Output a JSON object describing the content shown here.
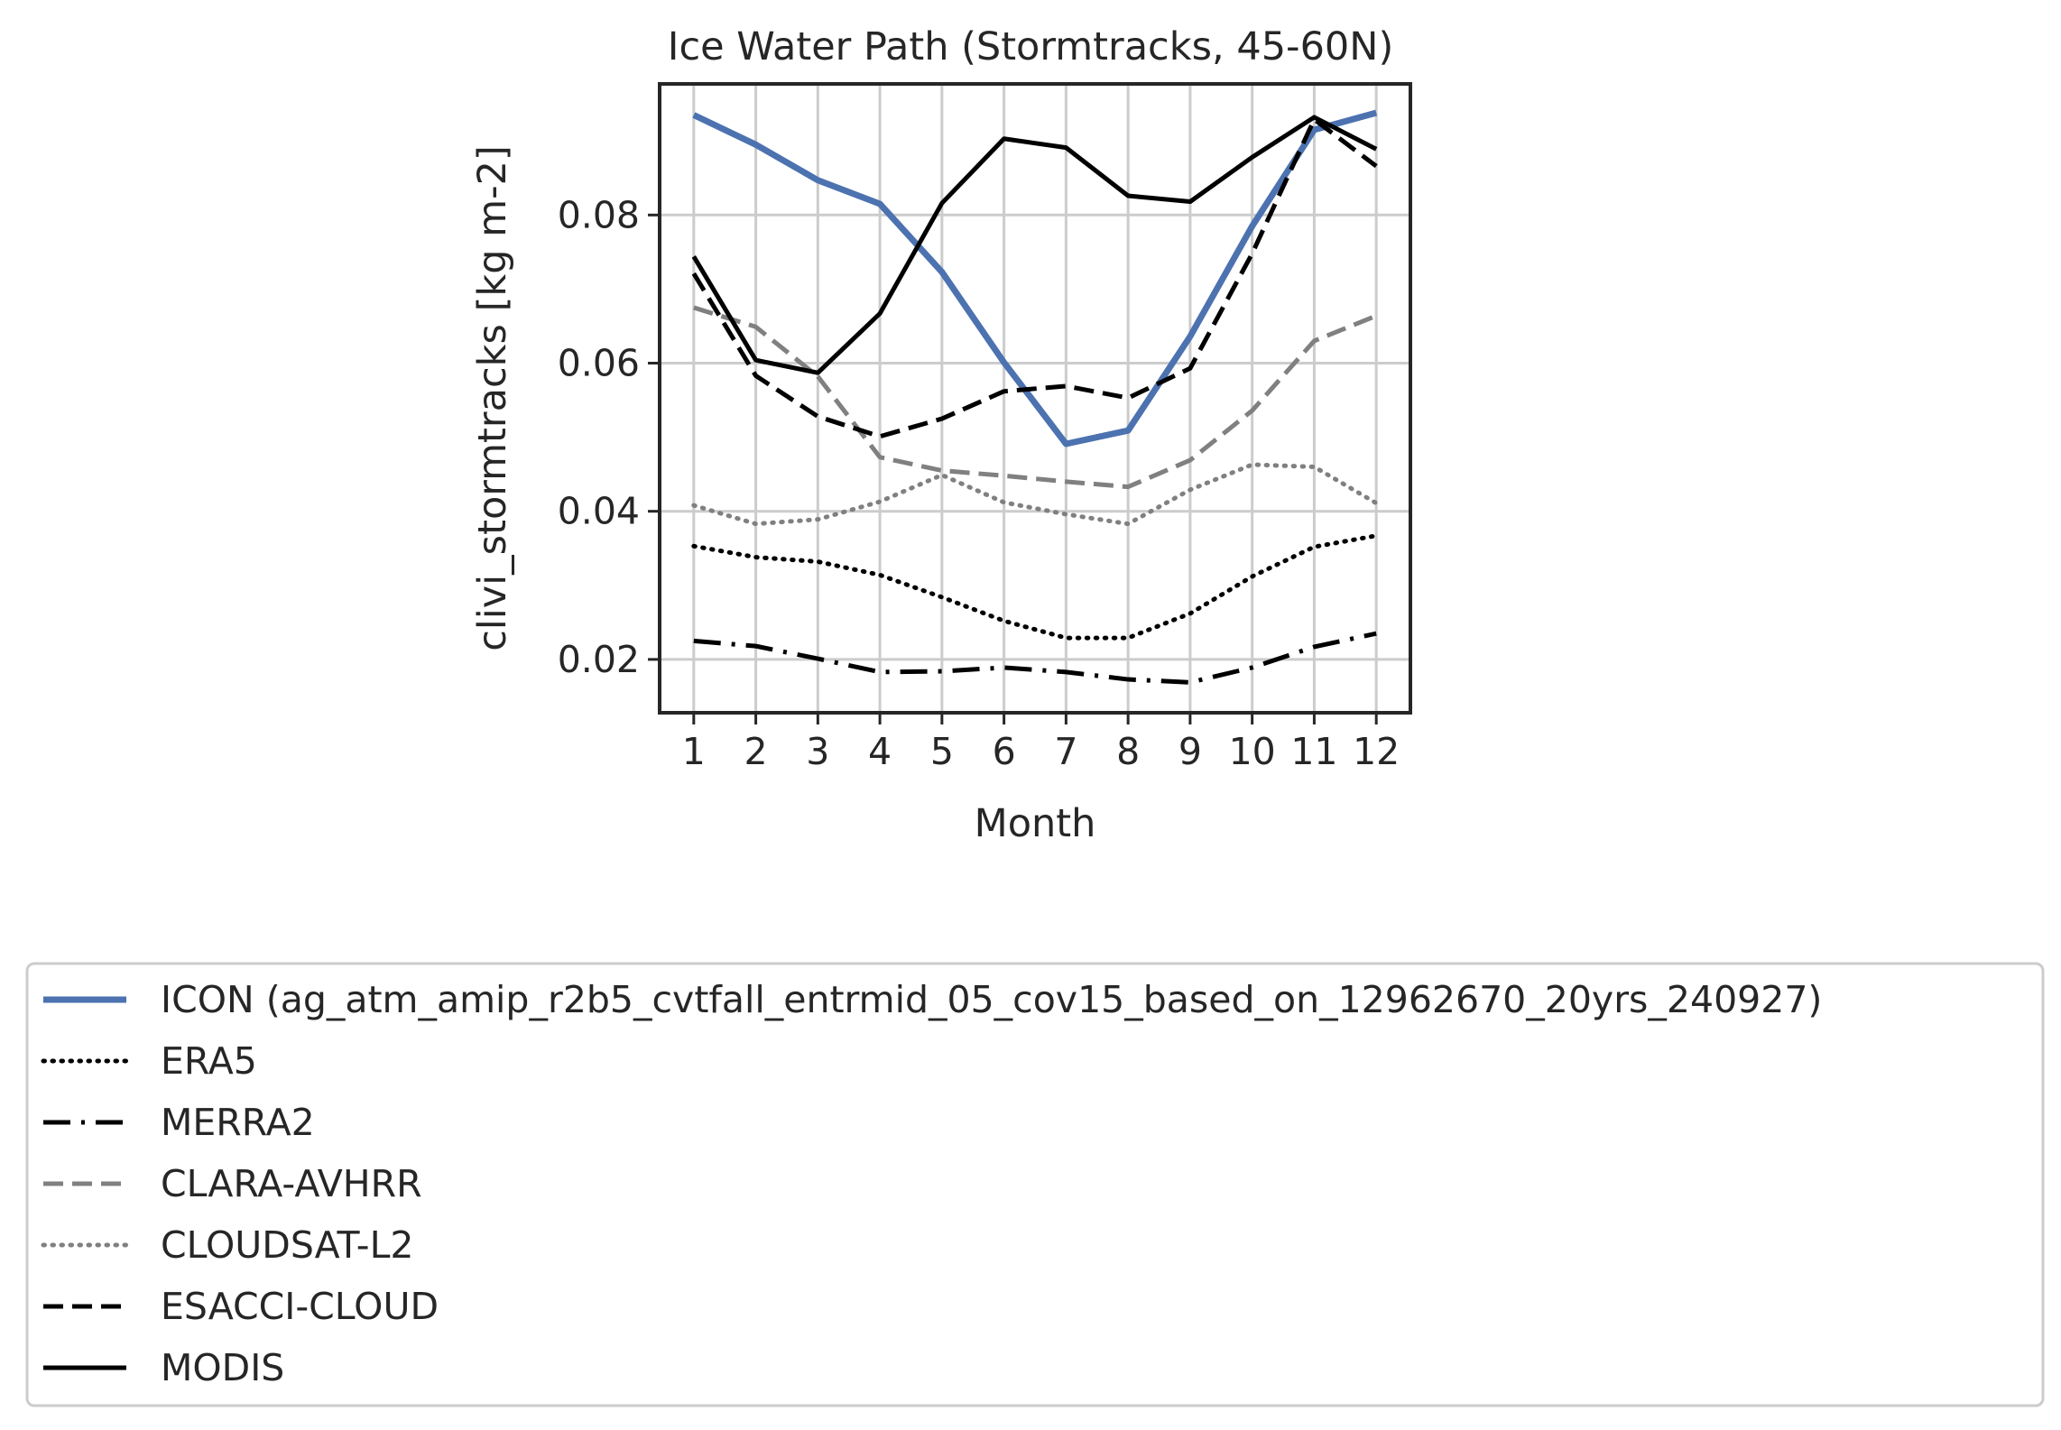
{
  "chart_data": {
    "type": "line",
    "title": "Ice Water Path (Stormtracks, 45-60N)",
    "xlabel": "Month",
    "ylabel": "clivi_stormtracks [kg m-2]",
    "x": [
      1,
      2,
      3,
      4,
      5,
      6,
      7,
      8,
      9,
      10,
      11,
      12
    ],
    "xlim": [
      0.45,
      12.55
    ],
    "ylim": [
      0.0128,
      0.0977
    ],
    "yticks": [
      0.02,
      0.04,
      0.06,
      0.08
    ],
    "ytick_labels": [
      "0.02",
      "0.04",
      "0.06",
      "0.08"
    ],
    "grid": true,
    "legend_placement": "bottom",
    "series": [
      {
        "name": "ICON (ag_atm_amip_r2b5_cvtfall_entrmid_05_cov15_based_on_12962670_20yrs_240927)",
        "color": "#4c72b0",
        "dash": "solid",
        "width": 7,
        "values": [
          0.0935,
          0.0895,
          0.0847,
          0.0815,
          0.0723,
          0.0601,
          0.0491,
          0.0509,
          0.0636,
          0.0785,
          0.0915,
          0.0938
        ]
      },
      {
        "name": "ERA5",
        "color": "#000000",
        "dash": "dotted",
        "width": 5,
        "values": [
          0.0353,
          0.0338,
          0.0332,
          0.0314,
          0.0284,
          0.0252,
          0.0229,
          0.0229,
          0.0262,
          0.0312,
          0.0352,
          0.0367
        ]
      },
      {
        "name": "MERRA2",
        "color": "#000000",
        "dash": "dashdot",
        "width": 5,
        "values": [
          0.0225,
          0.0218,
          0.0201,
          0.0183,
          0.0184,
          0.0189,
          0.0183,
          0.0173,
          0.0169,
          0.0189,
          0.0217,
          0.0235
        ]
      },
      {
        "name": "CLARA-AVHRR",
        "color": "#808080",
        "dash": "dashed",
        "width": 5,
        "values": [
          0.0675,
          0.0649,
          0.0582,
          0.0473,
          0.0455,
          0.0448,
          0.044,
          0.0433,
          0.0469,
          0.0536,
          0.063,
          0.0664
        ]
      },
      {
        "name": "CLOUDSAT-L2",
        "color": "#808080",
        "dash": "dotted",
        "width": 5,
        "values": [
          0.0408,
          0.0383,
          0.0389,
          0.0413,
          0.0449,
          0.0412,
          0.0396,
          0.0383,
          0.0429,
          0.0463,
          0.046,
          0.0411
        ]
      },
      {
        "name": "ESACCI-CLOUD",
        "color": "#000000",
        "dash": "dashed",
        "width": 5,
        "values": [
          0.0721,
          0.0583,
          0.0528,
          0.0501,
          0.0525,
          0.0562,
          0.0569,
          0.0553,
          0.0593,
          0.0748,
          0.0929,
          0.0866
        ]
      },
      {
        "name": "MODIS",
        "color": "#000000",
        "dash": "solid",
        "width": 5,
        "values": [
          0.0744,
          0.0604,
          0.0587,
          0.0667,
          0.0816,
          0.0903,
          0.0891,
          0.0826,
          0.0818,
          0.0878,
          0.0932,
          0.0889
        ]
      }
    ]
  }
}
